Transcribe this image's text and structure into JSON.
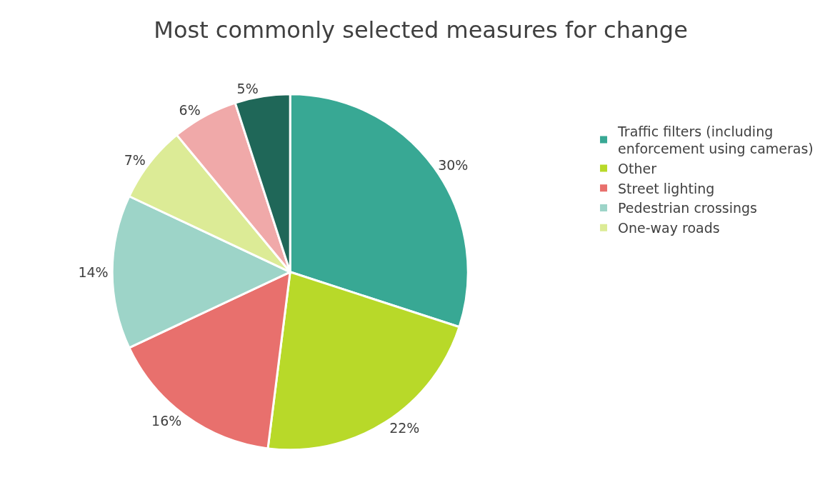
{
  "chart_data": {
    "type": "pie",
    "title": "Most commonly selected measures for change",
    "categories": [
      "Traffic filters (including enforcement using cameras)",
      "Other",
      "Street lighting",
      "Pedestrian crossings",
      "One-way roads",
      null,
      null
    ],
    "values": [
      30,
      22,
      16,
      14,
      7,
      6,
      5
    ],
    "colors": [
      "#38a894",
      "#b8d929",
      "#e8706d",
      "#9dd4c8",
      "#dceb96",
      "#f0a9a9",
      "#1f6758"
    ],
    "value_labels": [
      "30%",
      "22%",
      "16%",
      "14%",
      "7%",
      "6%",
      "5%"
    ],
    "legend": "right"
  }
}
